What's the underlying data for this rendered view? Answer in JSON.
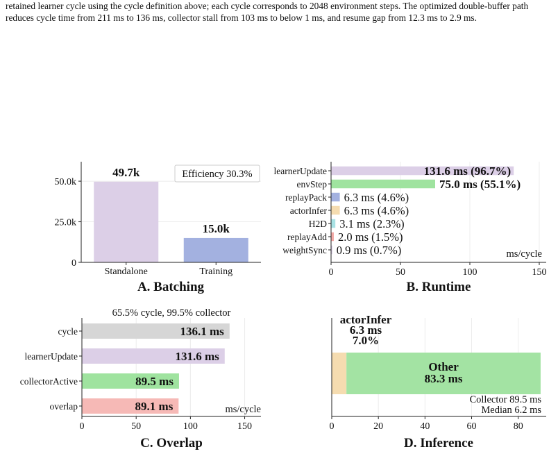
{
  "caption": {
    "text": "retained learner cycle using the cycle definition above; each cycle corresponds to 2048 environment steps. The optimized double-buffer path reduces cycle time from 211 ms to 136 ms, collector stall from 103 ms to below 1 ms, and resume gap from 12.3 ms to 2.9 ms."
  },
  "chart_data": [
    {
      "panel": "A",
      "type": "bar",
      "title": "A. Batching",
      "categories": [
        "Standalone",
        "Training"
      ],
      "values": [
        49700,
        15000
      ],
      "value_labels": [
        "49.7k",
        "15.0k"
      ],
      "ylim": [
        0,
        62000
      ],
      "yticks": [
        0,
        25000,
        50000
      ],
      "ytick_labels": [
        "0",
        "25.0k",
        "50.0k"
      ],
      "colors": [
        "#dccfe7",
        "#a3b1e0"
      ],
      "annotation": "Efficiency 30.3%",
      "grid": true
    },
    {
      "panel": "B",
      "type": "bar",
      "orientation": "horizontal",
      "title": "B. Runtime",
      "unit_label": "ms/cycle",
      "categories": [
        "learnerUpdate",
        "envStep",
        "replayPack",
        "actorInfer",
        "H2D",
        "replayAdd",
        "weightSync"
      ],
      "values": [
        131.6,
        75.0,
        6.3,
        6.3,
        3.1,
        2.0,
        0.9
      ],
      "value_labels": [
        "131.6 ms (96.7%)",
        "75.0 ms (55.1%)",
        "6.3 ms (4.6%)",
        "6.3 ms (4.6%)",
        "3.1 ms (2.3%)",
        "2.0 ms (1.5%)",
        "0.9 ms (0.7%)"
      ],
      "colors": [
        "#dccfe7",
        "#9fe39f",
        "#a3b1e0",
        "#f5dcb0",
        "#a9e2e4",
        "#f3aaa7",
        "#dccfe7"
      ],
      "xlim": [
        0,
        155
      ],
      "xticks": [
        0,
        50,
        100,
        150
      ],
      "grid": true
    },
    {
      "panel": "C",
      "type": "bar",
      "orientation": "horizontal",
      "title": "C. Overlap",
      "subtitle": "65.5% cycle, 99.5% collector",
      "unit_label": "ms/cycle",
      "categories": [
        "cycle",
        "learnerUpdate",
        "collectorActive",
        "overlap"
      ],
      "values": [
        136.1,
        131.6,
        89.5,
        89.1
      ],
      "value_labels": [
        "136.1 ms",
        "131.6 ms",
        "89.5 ms",
        "89.1 ms"
      ],
      "colors": [
        "#d6d6d6",
        "#dccfe7",
        "#9fe39f",
        "#f6b9b6"
      ],
      "xlim": [
        0,
        165
      ],
      "xticks": [
        0,
        50,
        100,
        150
      ],
      "grid": true
    },
    {
      "panel": "D",
      "type": "bar",
      "orientation": "horizontal",
      "stacked": true,
      "title": "D. Inference",
      "segments": [
        {
          "name": "actorInfer",
          "value": 6.3,
          "value_label": "6.3 ms",
          "pct_label": "7.0%",
          "color": "#f5dcb0"
        },
        {
          "name": "Other",
          "value": 83.3,
          "value_label": "83.3 ms",
          "color": "#a3e3a3"
        }
      ],
      "notes": [
        "Collector 89.5 ms",
        "Median 6.2 ms"
      ],
      "xlim": [
        0,
        92
      ],
      "xticks": [
        0,
        20,
        40,
        60,
        80
      ],
      "grid": true
    }
  ]
}
